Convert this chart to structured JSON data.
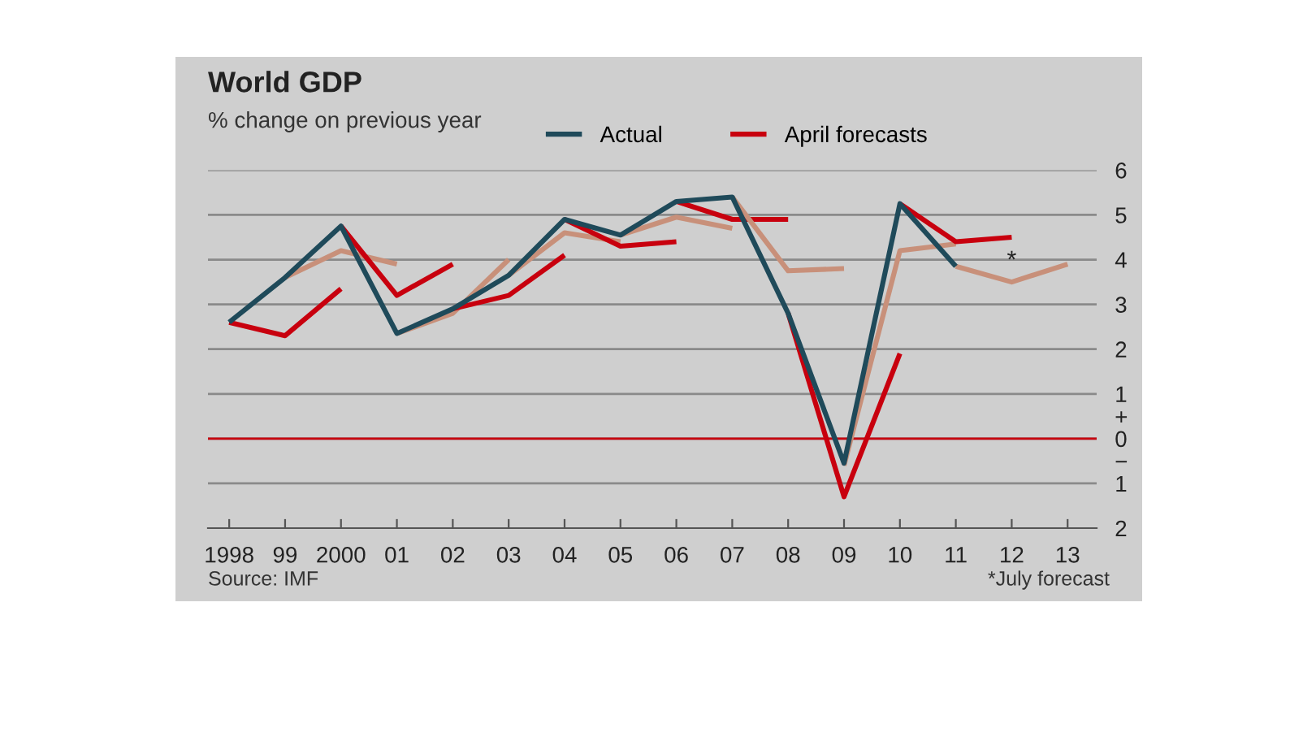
{
  "chart_data": {
    "type": "line",
    "title": "World GDP",
    "subtitle": "% change on previous year",
    "categories": [
      "1998",
      "99",
      "2000",
      "01",
      "02",
      "03",
      "04",
      "05",
      "06",
      "07",
      "08",
      "09",
      "10",
      "11",
      "12",
      "13"
    ],
    "series": [
      {
        "name": "Actual",
        "color": "#1f4a5a",
        "values": [
          2.6,
          3.6,
          4.75,
          2.35,
          2.9,
          3.65,
          4.9,
          4.55,
          5.3,
          5.4,
          2.8,
          -0.55,
          5.25,
          3.85,
          null,
          null
        ]
      },
      {
        "name": "April forecasts",
        "color": "#c8000e",
        "values": [
          2.6,
          2.3,
          3.35,
          null,
          null,
          null,
          null,
          null,
          null,
          null,
          null,
          null,
          null,
          null,
          null,
          null
        ]
      },
      {
        "color": "#c8907a",
        "values": [
          null,
          3.6,
          4.2,
          3.9,
          null,
          null,
          null,
          null,
          null,
          null,
          null,
          null,
          null,
          null,
          null,
          null
        ]
      },
      {
        "color": "#c8000e",
        "values": [
          null,
          null,
          4.75,
          3.2,
          3.9,
          null,
          null,
          null,
          null,
          null,
          null,
          null,
          null,
          null,
          null,
          null
        ]
      },
      {
        "color": "#c8907a",
        "values": [
          null,
          null,
          null,
          2.35,
          2.8,
          4.0,
          null,
          null,
          null,
          null,
          null,
          null,
          null,
          null,
          null,
          null
        ]
      },
      {
        "color": "#c8000e",
        "values": [
          null,
          null,
          null,
          null,
          2.9,
          3.2,
          4.1,
          null,
          null,
          null,
          null,
          null,
          null,
          null,
          null,
          null
        ]
      },
      {
        "color": "#c8907a",
        "values": [
          null,
          null,
          null,
          null,
          null,
          3.65,
          4.6,
          4.4,
          null,
          null,
          null,
          null,
          null,
          null,
          null,
          null
        ]
      },
      {
        "color": "#c8000e",
        "values": [
          null,
          null,
          null,
          null,
          null,
          null,
          4.9,
          4.3,
          4.4,
          null,
          null,
          null,
          null,
          null,
          null,
          null
        ]
      },
      {
        "color": "#c8907a",
        "values": [
          null,
          null,
          null,
          null,
          null,
          null,
          null,
          4.55,
          4.95,
          4.7,
          null,
          null,
          null,
          null,
          null,
          null
        ]
      },
      {
        "color": "#c8000e",
        "values": [
          null,
          null,
          null,
          null,
          null,
          null,
          null,
          null,
          5.3,
          4.9,
          4.9,
          null,
          null,
          null,
          null,
          null
        ]
      },
      {
        "color": "#c8907a",
        "values": [
          null,
          null,
          null,
          null,
          null,
          null,
          null,
          null,
          null,
          5.4,
          3.75,
          3.8,
          null,
          null,
          null,
          null
        ]
      },
      {
        "color": "#c8000e",
        "values": [
          null,
          null,
          null,
          null,
          null,
          null,
          null,
          null,
          null,
          null,
          2.8,
          -1.3,
          1.9,
          null,
          null,
          null
        ]
      },
      {
        "color": "#c8907a",
        "values": [
          null,
          null,
          null,
          null,
          null,
          null,
          null,
          null,
          null,
          null,
          null,
          -0.6,
          4.2,
          4.35,
          null,
          null
        ]
      },
      {
        "color": "#c8000e",
        "values": [
          null,
          null,
          null,
          null,
          null,
          null,
          null,
          null,
          null,
          null,
          null,
          null,
          5.25,
          4.4,
          4.5,
          null
        ]
      },
      {
        "color": "#c8907a",
        "values": [
          null,
          null,
          null,
          null,
          null,
          null,
          null,
          null,
          null,
          null,
          null,
          null,
          null,
          3.85,
          3.5,
          3.9
        ]
      }
    ],
    "ylim": [
      -2,
      6
    ],
    "yticks": [
      6,
      5,
      4,
      3,
      2,
      1,
      {
        "value": 0.5,
        "label": "+"
      },
      0,
      {
        "value": -0.5,
        "label": "−"
      },
      {
        "value": -1,
        "label": "1"
      },
      {
        "value": -2,
        "label": "2"
      }
    ],
    "grid": "y",
    "legend": "top",
    "marker": "none",
    "line_style": "solid",
    "ref_lines": [
      {
        "axis": "y",
        "value": 0,
        "color": "#c8000e"
      }
    ],
    "annotations": [
      {
        "text": "*",
        "x": "12",
        "y": 3.7
      },
      "Source: IMF",
      "*July forecast"
    ]
  }
}
